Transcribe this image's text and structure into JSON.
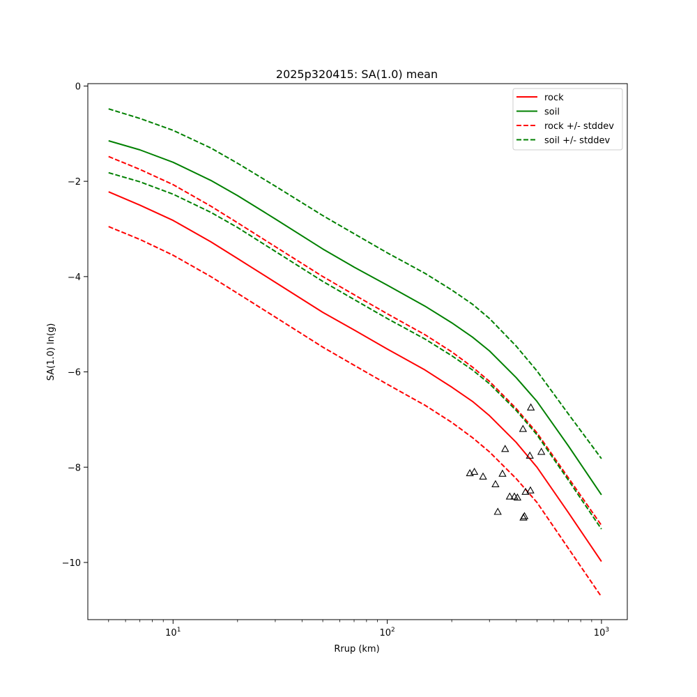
{
  "chart_data": {
    "type": "line",
    "title": "2025p320415: SA(1.0) mean",
    "xlabel": "Rrup (km)",
    "ylabel": "SA(1.0) ln(g)",
    "xscale": "log",
    "xlim": [
      4.0,
      1320
    ],
    "ylim": [
      -11.2,
      0.05
    ],
    "grid": false,
    "legend_position": "upper right",
    "x_major_ticks": [
      {
        "value": 10,
        "base": "10",
        "exp": "1"
      },
      {
        "value": 100,
        "base": "10",
        "exp": "2"
      },
      {
        "value": 1000,
        "base": "10",
        "exp": "3"
      }
    ],
    "y_ticks": [
      {
        "value": 0,
        "label": "0"
      },
      {
        "value": -2,
        "label": "−2"
      },
      {
        "value": -4,
        "label": "−4"
      },
      {
        "value": -6,
        "label": "−6"
      },
      {
        "value": -8,
        "label": "−8"
      },
      {
        "value": -10,
        "label": "−10"
      }
    ],
    "series": [
      {
        "name": "rock",
        "color": "#ff0000",
        "dash": "solid",
        "x": [
          5,
          7,
          10,
          15,
          20,
          30,
          50,
          70,
          100,
          150,
          200,
          250,
          300,
          400,
          500,
          700,
          1000
        ],
        "y": [
          -2.22,
          -2.5,
          -2.82,
          -3.27,
          -3.62,
          -4.12,
          -4.75,
          -5.12,
          -5.52,
          -5.96,
          -6.32,
          -6.62,
          -6.92,
          -7.48,
          -8.0,
          -8.95,
          -9.98
        ]
      },
      {
        "name": "soil",
        "color": "#008000",
        "dash": "solid",
        "x": [
          5,
          7,
          10,
          15,
          20,
          30,
          50,
          70,
          100,
          150,
          200,
          250,
          300,
          400,
          500,
          700,
          1000
        ],
        "y": [
          -1.15,
          -1.34,
          -1.6,
          -1.98,
          -2.3,
          -2.79,
          -3.42,
          -3.8,
          -4.18,
          -4.62,
          -4.97,
          -5.27,
          -5.56,
          -6.12,
          -6.62,
          -7.55,
          -8.58
        ]
      },
      {
        "name": "rock +/- stddev",
        "color": "#ff0000",
        "dash": "dashed",
        "x": [
          5,
          7,
          10,
          15,
          20,
          30,
          50,
          70,
          100,
          150,
          200,
          250,
          300,
          400,
          500,
          700,
          1000
        ],
        "y": [
          -1.48,
          -1.75,
          -2.07,
          -2.52,
          -2.87,
          -3.37,
          -4.0,
          -4.38,
          -4.78,
          -5.22,
          -5.58,
          -5.9,
          -6.2,
          -6.77,
          -7.28,
          -8.22,
          -9.22
        ]
      },
      {
        "name": "rock +/- stddev",
        "color": "#ff0000",
        "dash": "dashed",
        "show_in_legend": false,
        "x": [
          5,
          7,
          10,
          15,
          20,
          30,
          50,
          70,
          100,
          150,
          200,
          250,
          300,
          400,
          500,
          700,
          1000
        ],
        "y": [
          -2.95,
          -3.22,
          -3.55,
          -4.0,
          -4.35,
          -4.85,
          -5.48,
          -5.86,
          -6.26,
          -6.7,
          -7.06,
          -7.38,
          -7.68,
          -8.24,
          -8.74,
          -9.7,
          -10.72
        ]
      },
      {
        "name": "soil +/- stddev",
        "color": "#008000",
        "dash": "dashed",
        "x": [
          5,
          7,
          10,
          15,
          20,
          30,
          50,
          70,
          100,
          150,
          200,
          250,
          300,
          400,
          500,
          700,
          1000
        ],
        "y": [
          -0.48,
          -0.68,
          -0.93,
          -1.3,
          -1.62,
          -2.1,
          -2.72,
          -3.1,
          -3.5,
          -3.93,
          -4.28,
          -4.58,
          -4.88,
          -5.46,
          -5.98,
          -6.88,
          -7.82
        ]
      },
      {
        "name": "soil +/- stddev",
        "color": "#008000",
        "dash": "dashed",
        "show_in_legend": false,
        "x": [
          5,
          7,
          10,
          15,
          20,
          30,
          50,
          70,
          100,
          150,
          200,
          250,
          300,
          400,
          500,
          700,
          1000
        ],
        "y": [
          -1.82,
          -2.01,
          -2.27,
          -2.65,
          -2.97,
          -3.47,
          -4.1,
          -4.48,
          -4.88,
          -5.31,
          -5.66,
          -5.96,
          -6.25,
          -6.81,
          -7.32,
          -8.27,
          -9.3
        ]
      }
    ],
    "observations": {
      "marker": "open-triangle",
      "color": "#000000",
      "points": [
        {
          "x": 243,
          "y": -8.13
        },
        {
          "x": 255,
          "y": -8.1
        },
        {
          "x": 280,
          "y": -8.2
        },
        {
          "x": 320,
          "y": -8.36
        },
        {
          "x": 328,
          "y": -8.94
        },
        {
          "x": 345,
          "y": -8.14
        },
        {
          "x": 355,
          "y": -7.62
        },
        {
          "x": 373,
          "y": -8.62
        },
        {
          "x": 392,
          "y": -8.62
        },
        {
          "x": 405,
          "y": -8.64
        },
        {
          "x": 430,
          "y": -7.2
        },
        {
          "x": 432,
          "y": -9.06
        },
        {
          "x": 437,
          "y": -9.03
        },
        {
          "x": 442,
          "y": -8.52
        },
        {
          "x": 463,
          "y": -7.76
        },
        {
          "x": 466,
          "y": -8.49
        },
        {
          "x": 468,
          "y": -6.75
        },
        {
          "x": 524,
          "y": -7.68
        }
      ]
    }
  }
}
